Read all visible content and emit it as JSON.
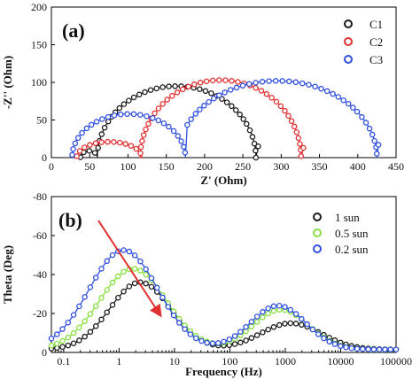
{
  "chart_data": [
    {
      "type": "scatter",
      "panel_label": "(a)",
      "xlabel": "Z' (Ohm)",
      "ylabel": "-Z'' (Ohm)",
      "xlim": [
        0,
        450
      ],
      "ylim": [
        0,
        200
      ],
      "xticks": [
        "0",
        "50",
        "100",
        "150",
        "200",
        "250",
        "300",
        "350",
        "400",
        "450"
      ],
      "yticks": [
        "0",
        "50",
        "100",
        "150",
        "200"
      ],
      "legend_position": "top-right",
      "series": [
        {
          "name": "C1",
          "color": "#1a1a1a",
          "arcs": [
            {
              "x0": 38,
              "x1": 60,
              "peak": 9,
              "start": 0.02,
              "end": 1.0
            },
            {
              "x0": 60,
              "x1": 267,
              "peak": 95,
              "start": 0.0,
              "end": 1.0
            }
          ],
          "tail": [
            [
              270,
              15
            ]
          ]
        },
        {
          "name": "C2",
          "color": "#e03030",
          "arcs": [
            {
              "x0": 33,
              "x1": 118,
              "peak": 21,
              "start": 0.03,
              "end": 1.0
            },
            {
              "x0": 116,
              "x1": 326,
              "peak": 103,
              "start": 0.0,
              "end": 1.0
            }
          ],
          "tail": [
            [
              329,
              13
            ]
          ]
        },
        {
          "name": "C3",
          "color": "#3050e0",
          "arcs": [
            {
              "x0": 27,
              "x1": 175,
              "peak": 58,
              "start": 0.02,
              "end": 1.0
            },
            {
              "x0": 165,
              "x1": 425,
              "peak": 102,
              "start": 0.14,
              "end": 1.0
            }
          ],
          "tail": [
            [
              427,
              17
            ]
          ]
        }
      ]
    },
    {
      "type": "scatter",
      "panel_label": "(b)",
      "xlabel": "Frequency (Hz)",
      "ylabel": "Theta (Deg)",
      "xscale": "log",
      "xlim": [
        0.06,
        100000
      ],
      "ylim": [
        0,
        -80
      ],
      "xticks": [
        "0.1",
        "1",
        "10",
        "100",
        "1000",
        "10000",
        "100000"
      ],
      "yticks": [
        "0",
        "-20",
        "-40",
        "-60",
        "-80"
      ],
      "legend_position": "top-right",
      "annotation": "red arrow pointing down-right across the low-frequency peaks",
      "series": [
        {
          "name": "1 sun",
          "color": "#1a1a1a",
          "base": -1.5,
          "peaks": [
            {
              "amp": -34.5,
              "center_log10": 0.38,
              "width": 0.55
            },
            {
              "amp": -13.5,
              "center_log10": 3.1,
              "width": 0.55
            }
          ]
        },
        {
          "name": "0.5 sun",
          "color": "#88e040",
          "base": -1.5,
          "peaks": [
            {
              "amp": -41.5,
              "center_log10": 0.25,
              "width": 0.6
            },
            {
              "amp": -20.5,
              "center_log10": 2.92,
              "width": 0.5
            }
          ]
        },
        {
          "name": "0.2 sun",
          "color": "#3050e0",
          "base": -1.5,
          "peaks": [
            {
              "amp": -51.0,
              "center_log10": 0.08,
              "width": 0.62
            },
            {
              "amp": -22.5,
              "center_log10": 2.87,
              "width": 0.5
            }
          ]
        }
      ]
    }
  ]
}
